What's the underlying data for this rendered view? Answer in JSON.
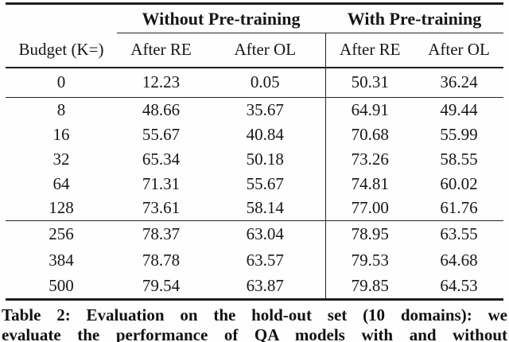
{
  "table": {
    "group_headers": [
      {
        "label": "Without Pre-training"
      },
      {
        "label": "With Pre-training"
      }
    ],
    "col_headers": [
      "Budget (K=)",
      "After RE",
      "After OL",
      "After RE",
      "After OL"
    ],
    "sections": [
      {
        "rows": [
          [
            "0",
            "12.23",
            "0.05",
            "50.31",
            "36.24"
          ]
        ]
      },
      {
        "rows": [
          [
            "8",
            "48.66",
            "35.67",
            "64.91",
            "49.44"
          ],
          [
            "16",
            "55.67",
            "40.84",
            "70.68",
            "55.99"
          ],
          [
            "32",
            "65.34",
            "50.18",
            "73.26",
            "58.55"
          ],
          [
            "64",
            "71.31",
            "55.67",
            "74.81",
            "60.02"
          ],
          [
            "128",
            "73.61",
            "58.14",
            "77.00",
            "61.76"
          ]
        ]
      },
      {
        "rows": [
          [
            "256",
            "78.37",
            "63.04",
            "78.95",
            "63.55"
          ],
          [
            "384",
            "78.78",
            "63.57",
            "79.53",
            "64.68"
          ],
          [
            "500",
            "79.54",
            "63.87",
            "79.85",
            "64.53"
          ]
        ]
      }
    ]
  },
  "caption": {
    "line1": "Table 2: Evaluation on the hold-out set (10 domains): we",
    "line2": "evaluate the performance of QA models with and without"
  },
  "colors": {
    "text": "#161616",
    "rule": "#1e1e1e",
    "background": "#fefefe"
  }
}
